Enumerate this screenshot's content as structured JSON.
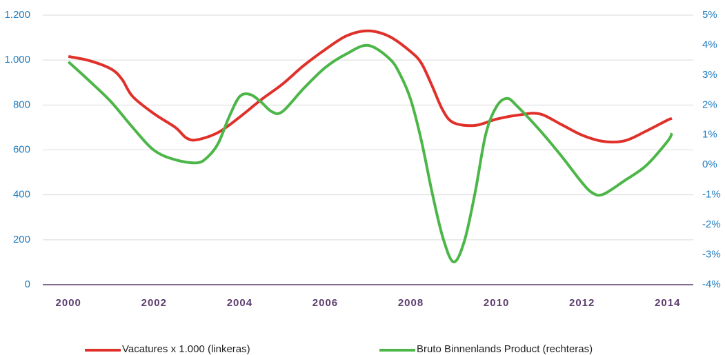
{
  "chart_data": {
    "type": "line",
    "xlim": [
      1999.4,
      2014.6
    ],
    "xticks": [
      2000,
      2002,
      2004,
      2006,
      2008,
      2010,
      2012,
      2014
    ],
    "ylim": [
      0,
      1200
    ],
    "yticks": [
      0,
      200,
      400,
      600,
      800,
      {
        "value": 1000,
        "label": "1.000"
      },
      {
        "value": 1200,
        "label": "1.200"
      }
    ],
    "y2lim": [
      -4,
      5
    ],
    "y2ticks": [
      {
        "value": -4,
        "label": "-4%"
      },
      {
        "value": -3,
        "label": "-3%"
      },
      {
        "value": -2,
        "label": "-2%"
      },
      {
        "value": -1,
        "label": "-1%"
      },
      {
        "value": 0,
        "label": "0%"
      },
      {
        "value": 1,
        "label": "1%"
      },
      {
        "value": 2,
        "label": "2%"
      },
      {
        "value": 3,
        "label": "3%"
      },
      {
        "value": 4,
        "label": "4%"
      },
      {
        "value": 5,
        "label": "5%"
      }
    ],
    "grid": true,
    "series": [
      {
        "name": "Vacatures x 1.000 (linkeras)",
        "color": "#e0302a",
        "axis": "y",
        "x": [
          2000,
          2000.5,
          2001,
          2001.25,
          2001.5,
          2002,
          2002.5,
          2002.75,
          2003,
          2003.5,
          2004,
          2004.5,
          2005,
          2005.5,
          2006,
          2006.5,
          2007,
          2007.5,
          2008,
          2008.25,
          2008.5,
          2008.75,
          2009,
          2009.5,
          2010,
          2010.5,
          2011,
          2011.5,
          2012,
          2012.5,
          2013,
          2013.5,
          2014,
          2014.1
        ],
        "values": [
          1016,
          997,
          960,
          915,
          838,
          761,
          700,
          654,
          645,
          678,
          746,
          823,
          893,
          976,
          1047,
          1108,
          1130,
          1105,
          1037,
          985,
          884,
          776,
          721,
          709,
          737,
          755,
          761,
          715,
          666,
          638,
          641,
          684,
          733,
          740
        ]
      },
      {
        "name": "Bruto Binnenlands Product (rechteras)",
        "color": "#4cb648",
        "axis": "y2",
        "x": [
          2000,
          2000.5,
          2001,
          2001.5,
          2002,
          2002.5,
          2003,
          2003.25,
          2003.5,
          2003.75,
          2004,
          2004.25,
          2004.5,
          2004.75,
          2005,
          2005.5,
          2006,
          2006.5,
          2007,
          2007.5,
          2007.75,
          2008,
          2008.25,
          2008.5,
          2008.75,
          2009,
          2009.25,
          2009.5,
          2009.75,
          2010,
          2010.25,
          2010.5,
          2011,
          2011.5,
          2012,
          2012.25,
          2012.5,
          2013,
          2013.5,
          2014,
          2014.1
        ],
        "values": [
          3.44,
          2.79,
          2.1,
          1.25,
          0.49,
          0.17,
          0.07,
          0.26,
          0.72,
          1.59,
          2.28,
          2.35,
          2.1,
          1.78,
          1.78,
          2.56,
          3.25,
          3.71,
          3.99,
          3.55,
          3.02,
          2.17,
          0.79,
          -0.94,
          -2.43,
          -3.24,
          -2.55,
          -0.94,
          1.02,
          1.94,
          2.22,
          1.94,
          1.18,
          0.33,
          -0.59,
          -0.94,
          -0.98,
          -0.52,
          -0.02,
          0.79,
          1.06
        ]
      }
    ]
  }
}
